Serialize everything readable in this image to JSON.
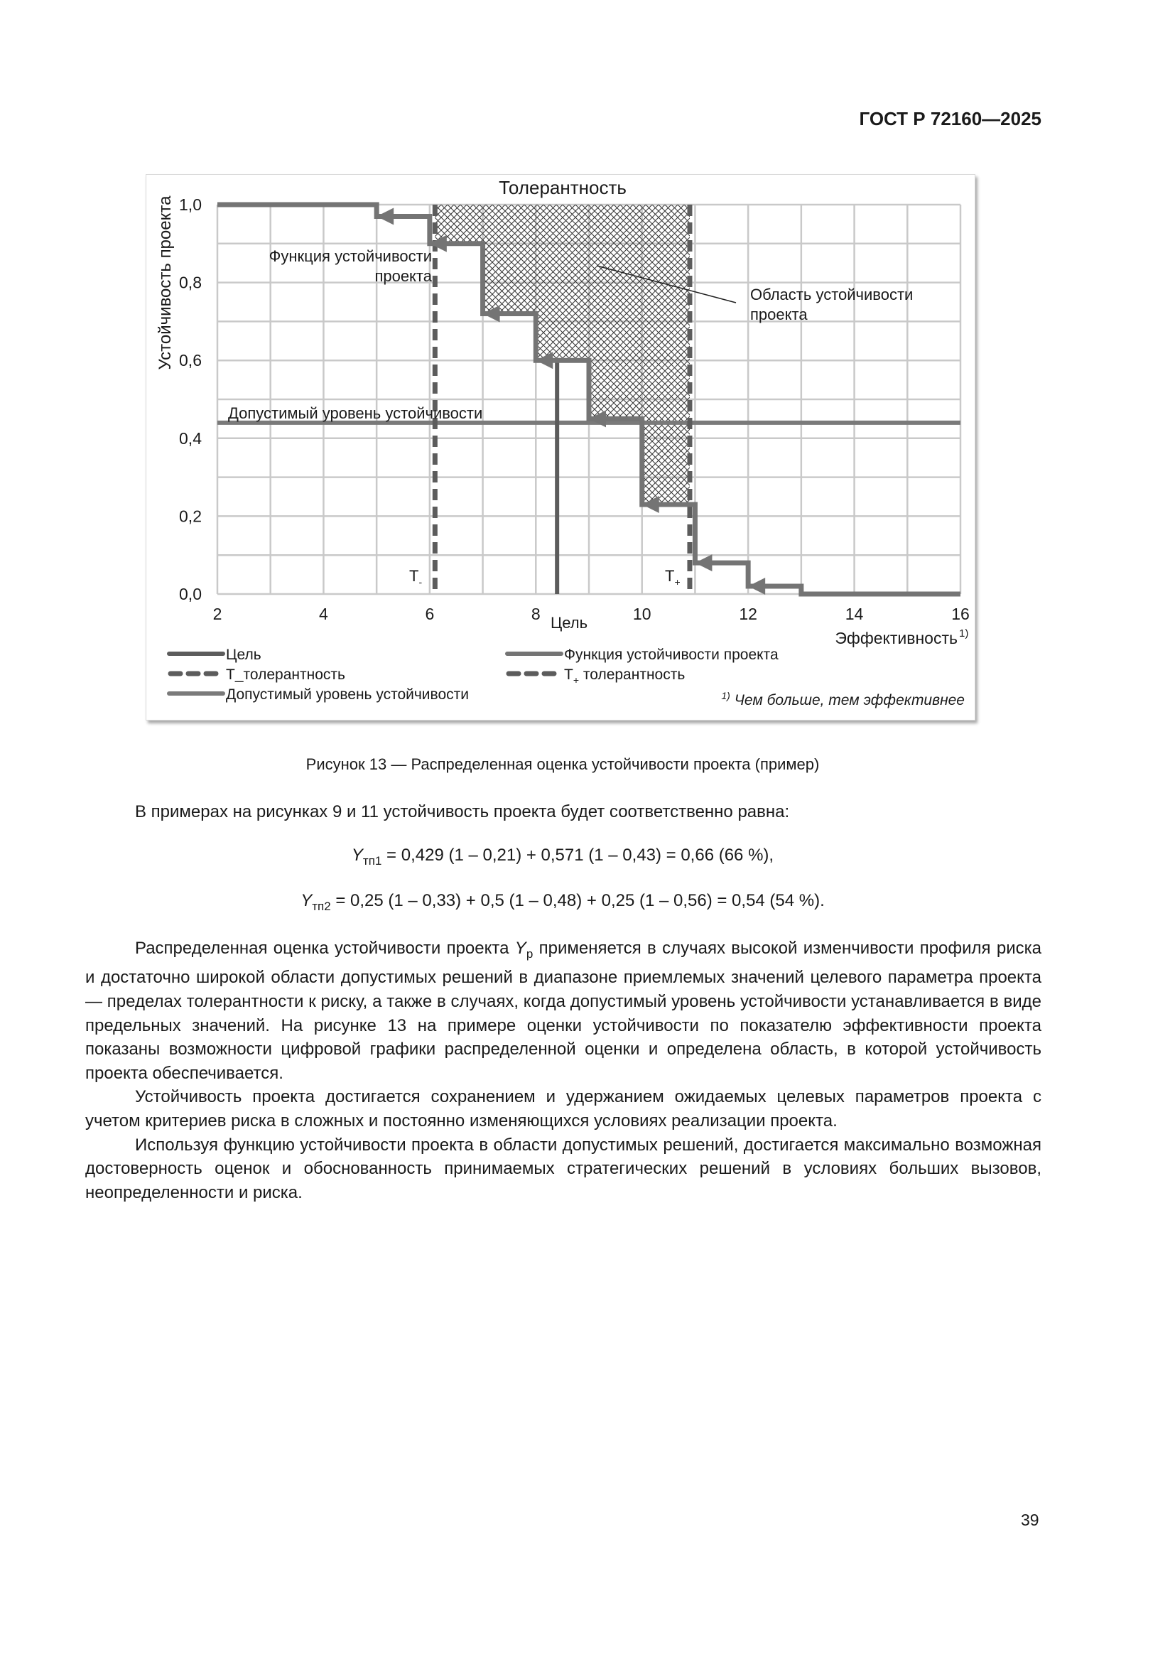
{
  "header": {
    "doc_id": "ГОСТ Р 72160—2025"
  },
  "chart_data": {
    "type": "line",
    "title": "Толерантность",
    "xlabel": "Эффективность",
    "xlabel_sup": "1)",
    "ylabel": "Устойчивость проекта",
    "xlim": [
      2,
      16
    ],
    "ylim": [
      0,
      1
    ],
    "x_ticks": [
      "2",
      "4",
      "6",
      "8",
      "10",
      "12",
      "14",
      "16"
    ],
    "x_tick_values": [
      2,
      4,
      6,
      8,
      10,
      12,
      14,
      16
    ],
    "y_ticks": [
      "0,0",
      "0,2",
      "0,4",
      "0,6",
      "0,8",
      "1,0"
    ],
    "y_tick_values": [
      0,
      0.2,
      0.4,
      0.6,
      0.8,
      1.0
    ],
    "grid": true,
    "grid_x_step": 1,
    "grid_y_step": 0.1,
    "series": [
      {
        "name": "Функция устойчивости проекта",
        "style": "step-with-arrows",
        "steps": [
          [
            2,
            5,
            1.0
          ],
          [
            5,
            6,
            0.97
          ],
          [
            6,
            7,
            0.9
          ],
          [
            7,
            8,
            0.72
          ],
          [
            8,
            9,
            0.6
          ],
          [
            9,
            10,
            0.45
          ],
          [
            10,
            11,
            0.23
          ],
          [
            11,
            12,
            0.08
          ],
          [
            12,
            13,
            0.02
          ],
          [
            13,
            16,
            0.0
          ]
        ]
      },
      {
        "name": "Цель",
        "style": "vertical-solid",
        "x": 8.4
      },
      {
        "name": "T_ толерантность",
        "style": "vertical-dashed",
        "x": 6.1
      },
      {
        "name": "T+ толерантность",
        "style": "vertical-dashed",
        "x": 10.9
      },
      {
        "name": "Допустимый уровень устойчивости",
        "style": "horizontal-solid",
        "y": 0.44
      }
    ],
    "region": {
      "label": "Область устойчивости проекта",
      "x_from": 6.1,
      "x_to": 10.9,
      "y_top": 1.0,
      "fill": "crosshatch"
    },
    "annotations": {
      "function_label_line1": "Функция устойчивости",
      "function_label_line2": "проекта",
      "level_label": "Допустимый уровень устойчивости",
      "region_label_line1": "Область устойчивости",
      "region_label_line2": "проекта",
      "t_minus": "T",
      "t_minus_sub": "-",
      "t_plus": "T",
      "t_plus_sub": "+",
      "goal": "Цель"
    },
    "legend": {
      "placement": "bottom",
      "items": [
        {
          "label": "Цель",
          "style": "solid"
        },
        {
          "label": "Функция устойчивости проекта",
          "style": "solid"
        },
        {
          "label": "T_толерантность",
          "style": "dashed"
        },
        {
          "label_main": "T",
          "label_sub": "+",
          "label_rest": " толерантность",
          "style": "dashed"
        },
        {
          "label": "Допустимый уровень устойчивости",
          "style": "solid"
        }
      ]
    },
    "footnote_mark": "1)",
    "footnote": "Чем больше, тем эффективнее",
    "colors": {
      "line": "#747474",
      "goal": "#5c5c5c",
      "grid": "#c9c9c9",
      "hatch": "#3a3a3a"
    }
  },
  "caption": "Рисунок 13 — Распределенная оценка устойчивости проекта (пример)",
  "text": {
    "intro": "В примерах на рисунках 9 и 11 устойчивость проекта будет соответственно равна:",
    "f1_var": "Y",
    "f1_sub": "тп1",
    "f1_rest": " = 0,429 (1 – 0,21) + 0,571 (1 – 0,43) = 0,66 (66 %),",
    "f2_var": "Y",
    "f2_sub": "тп2",
    "f2_rest": " = 0,25 (1 – 0,33) + 0,5 (1 – 0,48) + 0,25 (1 – 0,56) = 0,54 (54 %).",
    "p1_a": "Распределенная оценка устойчивости проекта ",
    "p1_var": "Y",
    "p1_sub": "р",
    "p1_b": " применяется в случаях высокой изменчивости профиля риска и достаточно широкой области допустимых решений в диапазоне приемлемых значений целевого параметра проекта — пределах толерантности к риску, а также в случаях, когда допустимый уровень устойчивости устанавливается в виде предельных значений. На рисунке 13 на примере оценки устойчивости по показателю эффективности проекта показаны возможности цифровой графики распределенной оценки и определена область, в которой устойчивость проекта обеспечивается.",
    "p2": "Устойчивость проекта достигается сохранением и удержанием ожидаемых целевых параметров проекта с учетом критериев риска в сложных и постоянно изменяющихся условиях реализации проекта.",
    "p3": "Используя функцию устойчивости проекта в области допустимых решений, достигается максимально возможная достоверность оценок и обоснованность принимаемых стратегических решений в условиях больших вызовов, неопределенности и риска."
  },
  "page_number": "39"
}
